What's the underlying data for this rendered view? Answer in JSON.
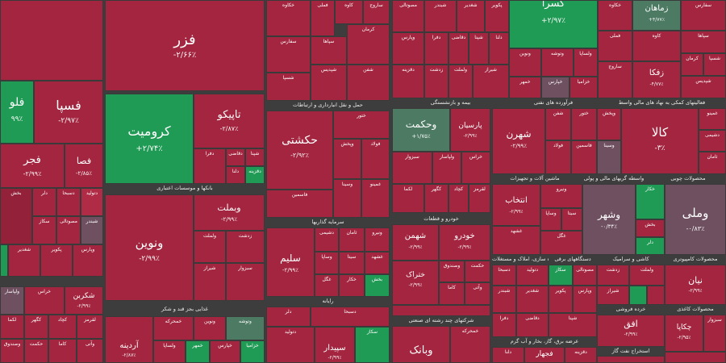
{
  "tiles": {
    "fazar": {
      "name": "فزر",
      "pct": "-۲/۶۶٪"
    },
    "fespa": {
      "name": "فسپا",
      "pct": "-۲/۹۷٪"
    },
    "folad": {
      "name": "فلو",
      "pct": "۹۹٪"
    },
    "koromit": {
      "name": "کرومیت",
      "pct": "+۲/۷۴٪"
    },
    "tapiko": {
      "name": "تاپیکو",
      "pct": "-۲/۸۷٪"
    },
    "fejar": {
      "name": "فجر",
      "pct": "-۲/۹۹٪"
    },
    "fesa": {
      "name": "فصا",
      "pct": "-۲/۸۵٪"
    },
    "haksheti": {
      "name": "حکشتی",
      "pct": "-۲/۹۲٪"
    },
    "vahekmat": {
      "name": "وحکمت",
      "pct": "+۱/۷۵٪"
    },
    "parsian": {
      "name": "پارسیان",
      "pct": "-۲/۹۹٪"
    },
    "shahran": {
      "name": "شهرن",
      "pct": "-۲/۹۹٪"
    },
    "kala": {
      "name": "کالا",
      "pct": "-۳٪"
    },
    "zamahan": {
      "name": "زماهان",
      "pct": "+۴/۷۷٪"
    },
    "kesra": {
      "name": "کسرا",
      "pct": "+۲/۹۷٪"
    },
    "zefka": {
      "name": "زفکا",
      "pct": "-۴/۷۷٪"
    },
    "vemelat": {
      "name": "وبملت",
      "pct": "-۲/۹۹٪"
    },
    "vanavin": {
      "name": "ونوین",
      "pct": "-۲/۹۹٪"
    },
    "salim": {
      "name": "سلیم",
      "pct": "-۲/۹۹٪"
    },
    "vashahr": {
      "name": "وشهر",
      "pct": "-۰/۳۴٪"
    },
    "vamelli": {
      "name": "وملی",
      "pct": "-۰/۸۳٪"
    },
    "vebank": {
      "name": "وبانک",
      "pct": "-۲/۹۹٪"
    },
    "enteshab": {
      "name": "انتخاب",
      "pct": "-۲/۹۹٪"
    },
    "nian": {
      "name": "نیان",
      "pct": "-۲/۹۹٪"
    },
    "shekren": {
      "name": "شکربن",
      "pct": "-۲/۹۹٪"
    },
    "ardine": {
      "name": "آردینه",
      "pct": "-۲/۸۷٪"
    },
    "sepidar": {
      "name": "سپیدار",
      "pct": "-۲/۹۹٪"
    },
    "afaq": {
      "name": "افق",
      "pct": "-۲/۹۹٪"
    },
    "chekapa": {
      "name": "چکاپا",
      "pct": "-۲/۹۵٪"
    },
    "fajhar": {
      "name": "فجهار",
      "pct": "-۲/۹۹٪"
    },
    "khotak": {
      "name": "ختراک",
      "pct": "-۲/۹۹٪"
    },
    "khodro": {
      "name": "خودرو",
      "pct": "-۲/۹۹٪"
    },
    "shahmen": {
      "name": "شهمن",
      "pct": "-۲/۹۹٪"
    }
  },
  "sectors": {
    "s1": "بانکها و موسسات اعتباری",
    "s2": "حمل و نقل انبارداری و ارتباطات",
    "s3": "بیمه و بازنشستگی",
    "s4": "فرآورده های نفتی",
    "s5": "فعالیتهای کمکی به نهاد های مالی واسط",
    "s6": "سرمایه گذاریها",
    "s7": "خودرو و قطعات",
    "s8": "ماشین آلات و تجهیزات",
    "s9": "واسطه گریهای مالی و پولی",
    "s10": "محصولات چوبی",
    "s11": "غذایی بجز قند و شکر",
    "s12": "رایانه",
    "s13": "شرکتهای چند رشته ای صنعتی",
    "s14": "انبوه سازی، املاک و مستغلات",
    "s15": "دستگاههای برقی",
    "s16": "کاشی و سرامیک",
    "s17": "محصولات کامپیوتری",
    "s18": "خرده فروشی",
    "s19": "عرضه برق، گاز، بخار و آب گرم",
    "s20": "استخراج نفت گاز",
    "s21": "محصولات کاغذی"
  },
  "small": [
    "بخش",
    "دلر",
    "دسبحا",
    "دتولید",
    "سکاز",
    "مصوتالی",
    "شبندر",
    "شغدیر",
    "پکویر",
    "وپارس",
    "دفرا",
    "دقاضی",
    "شپنا",
    "دلنا",
    "دقزینه",
    "زدشت",
    "ولملت",
    "شیراز",
    "سبزوار",
    "ولپاسار",
    "خراس",
    "لکما",
    "کگهر",
    "کچاد",
    "لقرمز",
    "وصندوق",
    "حکمت",
    "کاما",
    "وآتی",
    "خمحرکه",
    "ونوین",
    "وتوشه",
    "ولساپا",
    "خمهر",
    "خپارس",
    "خزامیا",
    "خکاوه",
    "فملی",
    "کاوه",
    "ساروج",
    "سفارس",
    "سپاها",
    "کرمان",
    "شسپا",
    "شپدیس",
    "شفن",
    "ختور",
    "وپخش",
    "فولاد",
    "فاسمین",
    "وسینا",
    "غمینو",
    "دشیمی",
    "ثامان",
    "ونیرو",
    "وساپا",
    "سیتا",
    "غشهد",
    "غگل",
    "خکار"
  ]
}
